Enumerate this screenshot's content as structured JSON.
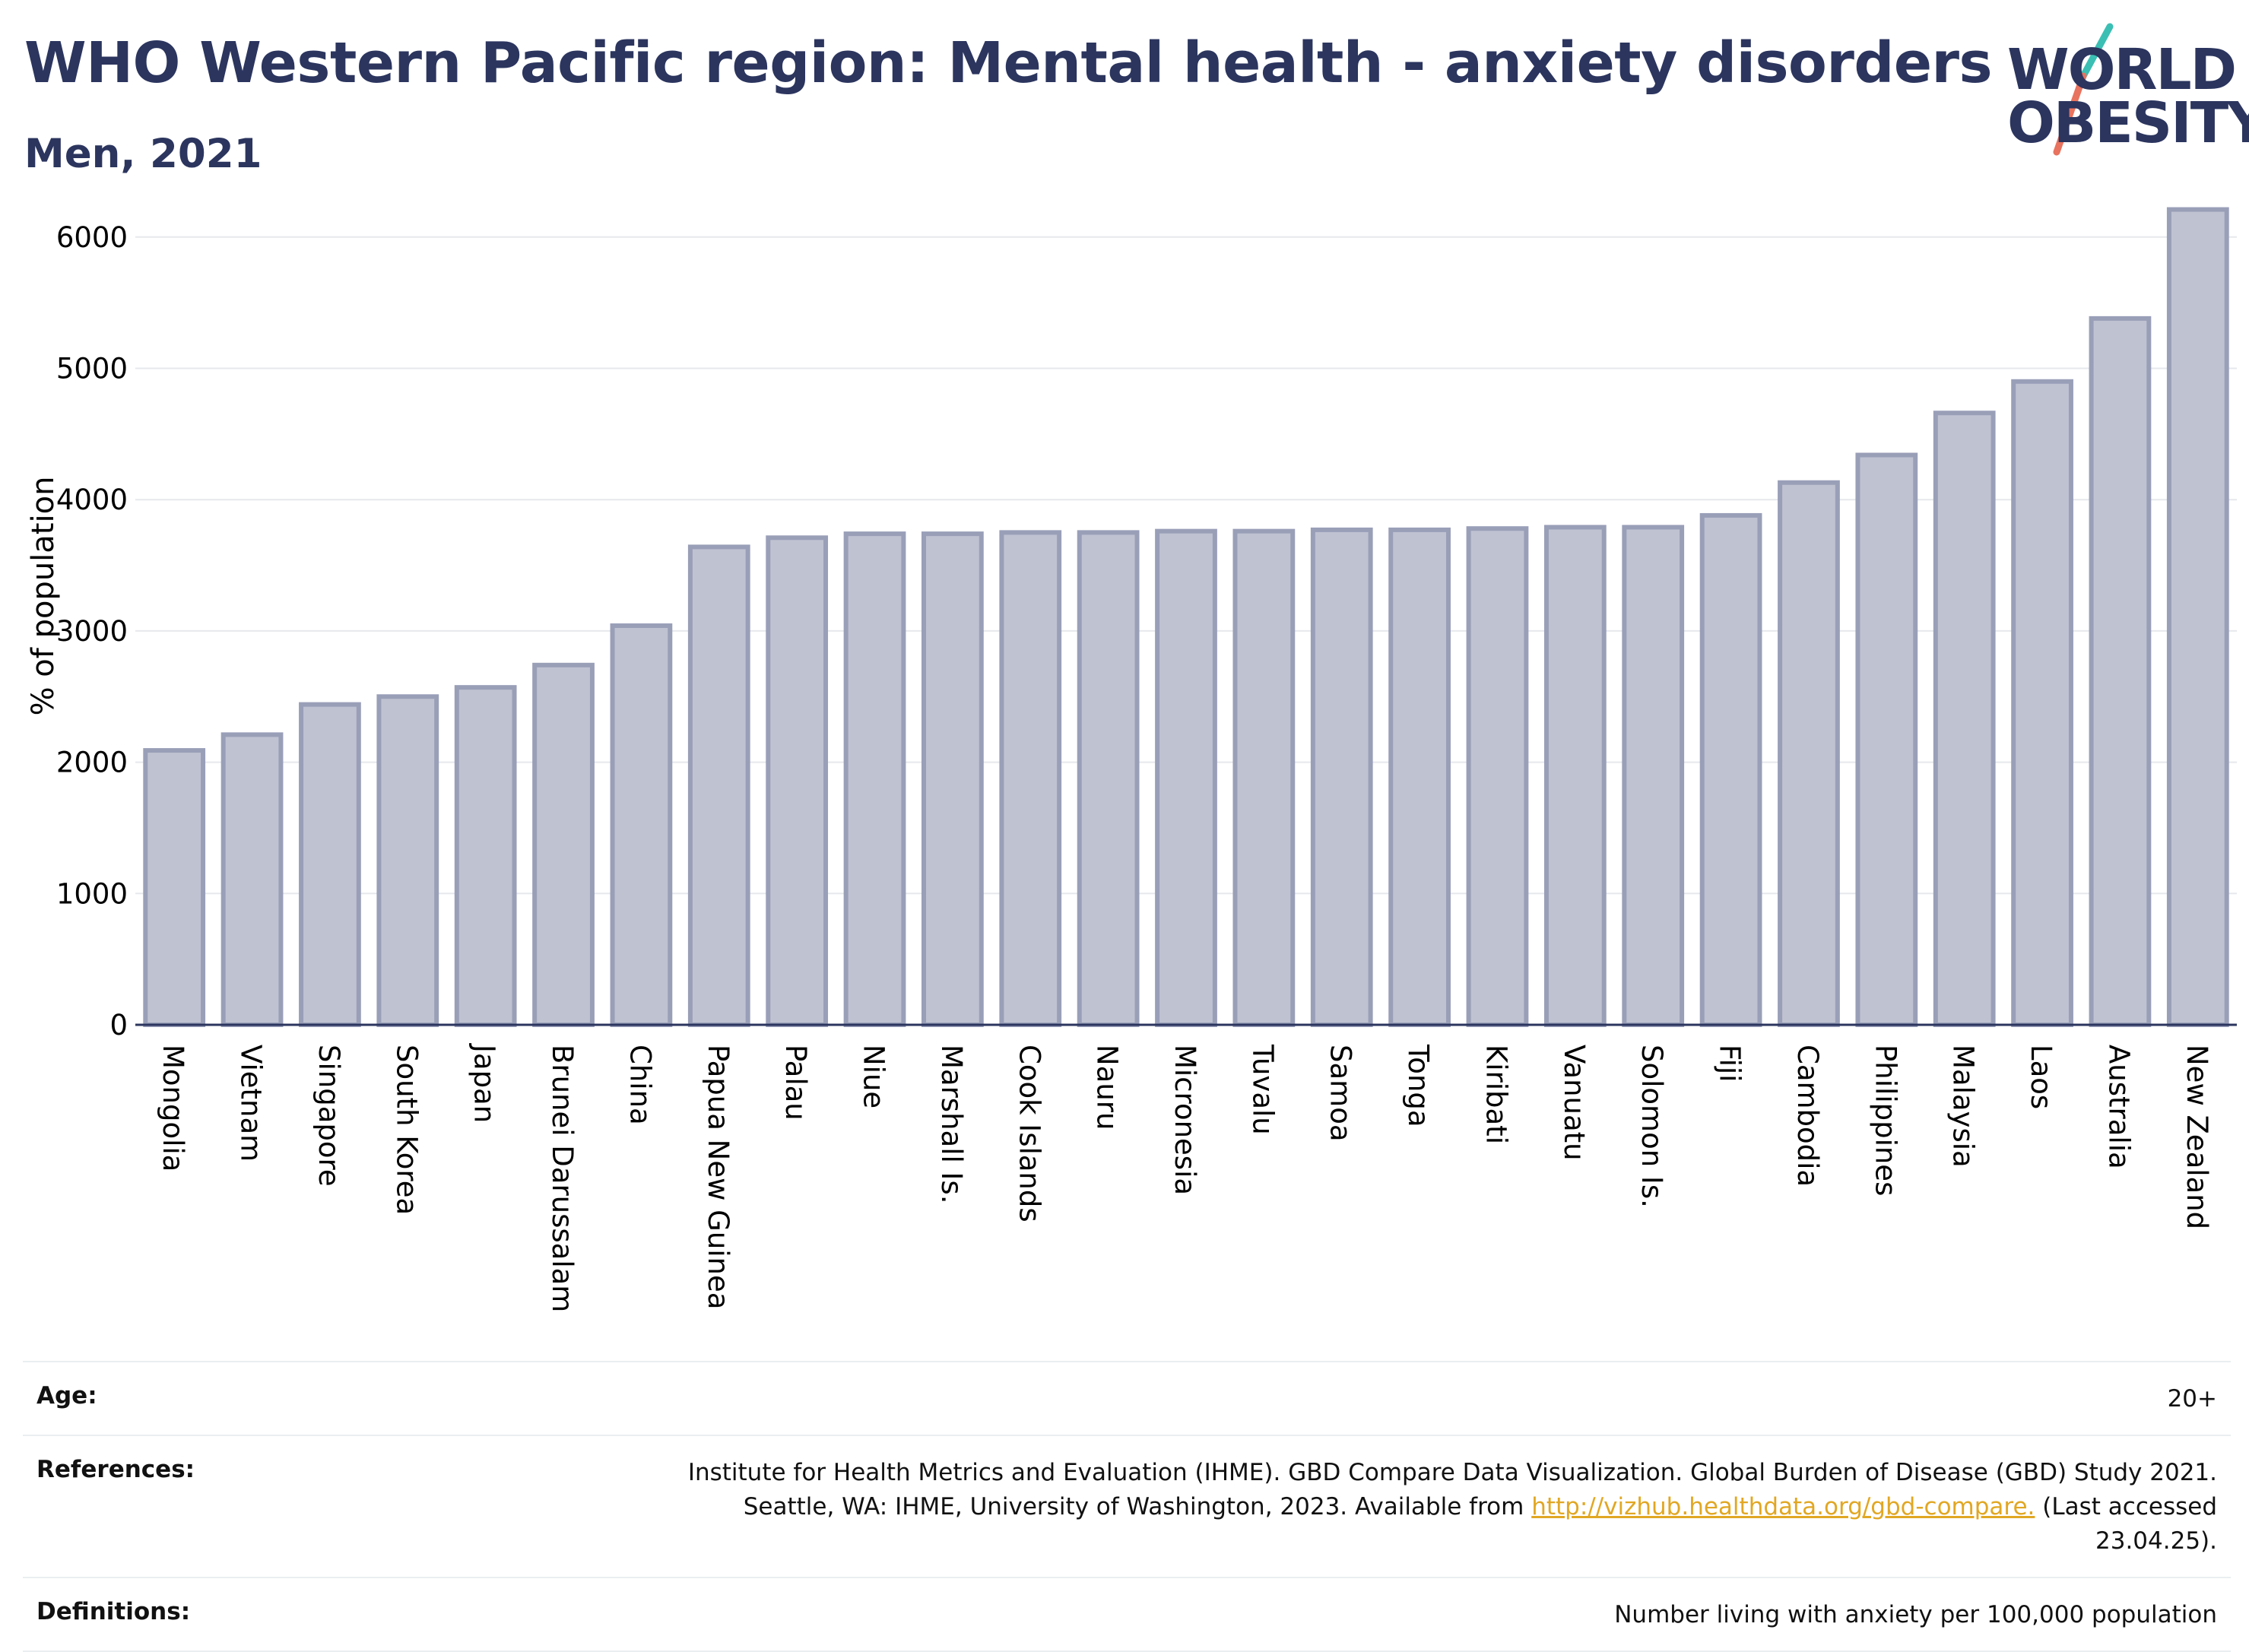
{
  "header": {
    "title": "WHO Western Pacific region: Mental health - anxiety disorders",
    "subtitle": "Men, 2021"
  },
  "logo": {
    "line1": "WORLD",
    "line2": "OBESITY",
    "slash_colors": [
      "#3bbfb4",
      "#e8735e"
    ]
  },
  "chart_data": {
    "type": "bar",
    "title": "",
    "ylabel": "% of population",
    "xlabel": "",
    "ylim": [
      0,
      6300
    ],
    "yticks": [
      0,
      1000,
      2000,
      3000,
      4000,
      5000,
      6000
    ],
    "grid": true,
    "bar_fill": "#bfc2d1",
    "bar_stroke": "#9a9fb8",
    "categories": [
      "Mongolia",
      "Vietnam",
      "Singapore",
      "South Korea",
      "Japan",
      "Brunei Darussalam",
      "China",
      "Papua New Guinea",
      "Palau",
      "Niue",
      "Marshall Is.",
      "Cook Islands",
      "Nauru",
      "Micronesia",
      "Tuvalu",
      "Samoa",
      "Tonga",
      "Kiribati",
      "Vanuatu",
      "Solomon Is.",
      "Fiji",
      "Cambodia",
      "Philippines",
      "Malaysia",
      "Laos",
      "Australia",
      "New Zealand"
    ],
    "values": [
      2090,
      2210,
      2440,
      2500,
      2570,
      2740,
      3040,
      3640,
      3710,
      3740,
      3740,
      3750,
      3750,
      3760,
      3760,
      3770,
      3770,
      3780,
      3790,
      3790,
      3880,
      4130,
      4340,
      4660,
      4900,
      5380,
      6210
    ]
  },
  "info": {
    "age_label": "Age:",
    "age_value": "20+",
    "references_label": "References:",
    "references_line1": "Institute for Health Metrics and Evaluation (IHME). GBD Compare Data Visualization. Global Burden of Disease (GBD) Study 2021.",
    "references_line2_pre": "Seattle, WA: IHME, University of Washington, 2023. Available from ",
    "references_link": "http://vizhub.healthdata.org/gbd-compare.",
    "references_line2_post": " (Last accessed",
    "references_line3": "23.04.25).",
    "definitions_label": "Definitions:",
    "definitions_value": "Number living with anxiety per 100,000 population"
  }
}
